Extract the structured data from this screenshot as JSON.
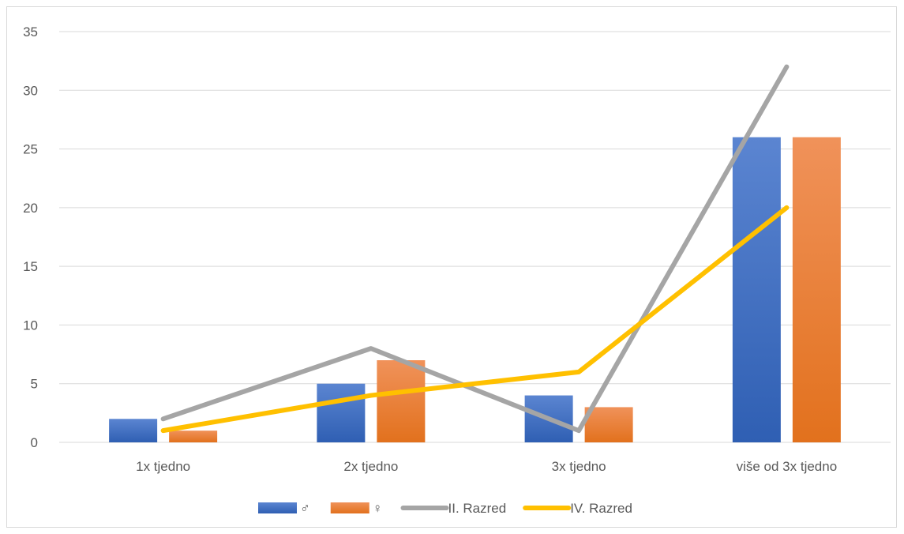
{
  "chart_data": {
    "type": "bar",
    "title": "",
    "xlabel": "",
    "ylabel": "",
    "categories": [
      "1x tjedno",
      "2x tjedno",
      "3x tjedno",
      "više od 3x tjedno"
    ],
    "ylim": [
      0,
      35
    ],
    "yticks": [
      0,
      5,
      10,
      15,
      20,
      25,
      30,
      35
    ],
    "grid": true,
    "legend_position": "bottom",
    "series": [
      {
        "name": "♂",
        "kind": "bar",
        "color": "#4472c4",
        "values": [
          2,
          5,
          4,
          26
        ]
      },
      {
        "name": "♀",
        "kind": "bar",
        "color": "#ed7d31",
        "values": [
          1,
          7,
          3,
          26
        ]
      },
      {
        "name": "II. Razred",
        "kind": "line",
        "color": "#a5a5a5",
        "values": [
          2,
          8,
          1,
          32
        ]
      },
      {
        "name": "IV. Razred",
        "kind": "line",
        "color": "#ffc000",
        "values": [
          1,
          4,
          6,
          20
        ]
      }
    ]
  }
}
